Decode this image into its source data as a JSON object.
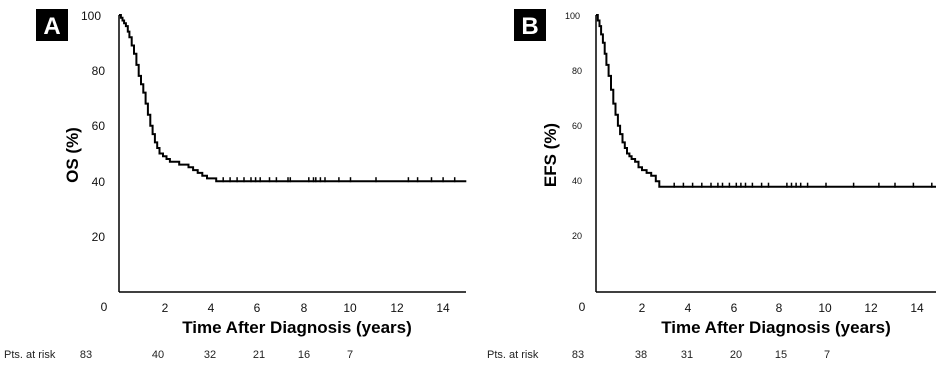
{
  "chart_data": [
    {
      "type": "line",
      "panel_label": "A",
      "xlabel": "Time After Diagnosis (years)",
      "ylabel": "OS (%)",
      "xlim": [
        0,
        15
      ],
      "ylim": [
        0,
        100
      ],
      "x_ticks": [
        2,
        4,
        6,
        8,
        10,
        12,
        14
      ],
      "y_ticks": [
        0,
        20,
        40,
        60,
        80,
        100
      ],
      "grid": false,
      "series": [
        {
          "x": [
            0,
            0.08,
            0.15,
            0.22,
            0.3,
            0.38,
            0.45,
            0.55,
            0.65,
            0.75,
            0.85,
            0.95,
            1.05,
            1.15,
            1.25,
            1.35,
            1.45,
            1.55,
            1.65,
            1.75,
            1.9,
            2.05,
            2.2,
            2.4,
            2.6,
            2.8,
            3.0,
            3.2,
            3.4,
            3.6,
            3.8,
            4.0,
            4.2,
            15.0
          ],
          "y": [
            100,
            99,
            98,
            97,
            96,
            94,
            92,
            89,
            86,
            82,
            78,
            75,
            72,
            68,
            64,
            60,
            57,
            54,
            52,
            50,
            49,
            48,
            47,
            47,
            46,
            46,
            45,
            44,
            43,
            42,
            41,
            41,
            40,
            40
          ],
          "censor_x": [
            4.5,
            4.8,
            5.1,
            5.4,
            5.7,
            5.9,
            6.1,
            6.5,
            6.8,
            7.3,
            7.4,
            8.2,
            8.4,
            8.5,
            8.7,
            8.9,
            9.5,
            10.0,
            11.1,
            12.5,
            12.9,
            13.5,
            14.0,
            14.5
          ]
        }
      ],
      "risk_table": {
        "label": "Pts. at risk",
        "x": [
          0,
          2,
          4,
          6,
          8,
          10
        ],
        "values": [
          "83",
          "40",
          "32",
          "21",
          "16",
          "7"
        ]
      }
    },
    {
      "type": "line",
      "panel_label": "B",
      "xlabel": "Time After Diagnosis (years)",
      "ylabel": "EFS (%)",
      "xlim": [
        0,
        15
      ],
      "ylim": [
        0,
        100
      ],
      "x_ticks": [
        2,
        4,
        6,
        8,
        10,
        12,
        14
      ],
      "y_ticks": [
        0,
        20,
        40,
        60,
        80,
        100
      ],
      "grid": false,
      "series": [
        {
          "x": [
            0,
            0.08,
            0.15,
            0.22,
            0.3,
            0.38,
            0.45,
            0.55,
            0.65,
            0.75,
            0.85,
            0.95,
            1.05,
            1.15,
            1.25,
            1.35,
            1.45,
            1.55,
            1.7,
            1.85,
            2.0,
            2.2,
            2.4,
            2.6,
            2.75,
            15.0
          ],
          "y": [
            100,
            98,
            96,
            93,
            90,
            86,
            82,
            78,
            73,
            68,
            64,
            60,
            57,
            54,
            52,
            50,
            49,
            48,
            47,
            45,
            44,
            43,
            42,
            40,
            38,
            38
          ],
          "censor_x": [
            3.4,
            3.8,
            4.2,
            4.6,
            5.0,
            5.3,
            5.5,
            5.8,
            6.1,
            6.3,
            6.5,
            6.8,
            7.2,
            7.5,
            8.3,
            8.5,
            8.7,
            8.9,
            9.2,
            10.0,
            11.2,
            12.3,
            13.0,
            13.8,
            14.6
          ]
        }
      ],
      "risk_table": {
        "label": "Pts. at risk",
        "x": [
          0,
          2,
          4,
          6,
          8,
          10
        ],
        "values": [
          "83",
          "38",
          "31",
          "20",
          "15",
          "7"
        ]
      }
    }
  ]
}
